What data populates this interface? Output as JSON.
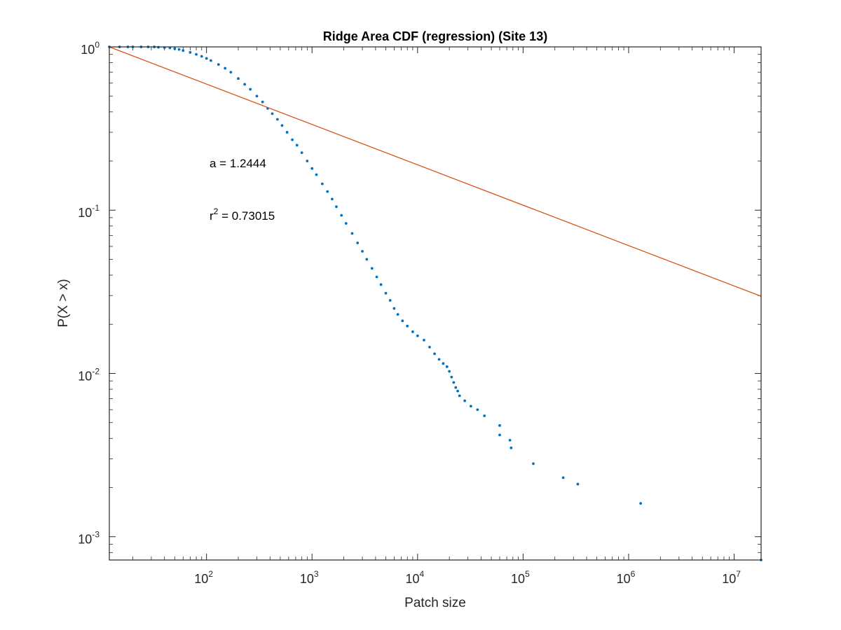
{
  "chart_data": {
    "type": "scatter",
    "title": "Ridge Area CDF (regression) (Site 13)",
    "xlabel": "Patch size",
    "ylabel": "P(X > x)",
    "x_scale": "log",
    "y_scale": "log",
    "xlim": [
      12,
      18000000
    ],
    "ylim": [
      0.00072,
      1
    ],
    "grid": false,
    "x_ticks": [
      {
        "base": "10",
        "exp": "2",
        "value": 100
      },
      {
        "base": "10",
        "exp": "3",
        "value": 1000
      },
      {
        "base": "10",
        "exp": "4",
        "value": 10000
      },
      {
        "base": "10",
        "exp": "5",
        "value": 100000
      },
      {
        "base": "10",
        "exp": "6",
        "value": 1000000
      },
      {
        "base": "10",
        "exp": "7",
        "value": 10000000
      }
    ],
    "y_ticks": [
      {
        "base": "10",
        "exp": "0",
        "value": 1
      },
      {
        "base": "10",
        "exp": "-1",
        "value": 0.1
      },
      {
        "base": "10",
        "exp": "-2",
        "value": 0.01
      },
      {
        "base": "10",
        "exp": "-3",
        "value": 0.001
      }
    ],
    "series": [
      {
        "marker": "dot",
        "color": "#0072BD",
        "x": [
          12,
          15,
          18,
          20,
          24,
          28,
          32,
          35,
          40,
          45,
          50,
          55,
          60,
          70,
          80,
          90,
          100,
          110,
          130,
          150,
          170,
          200,
          230,
          260,
          300,
          340,
          380,
          420,
          470,
          520,
          580,
          650,
          720,
          800,
          900,
          1000,
          1100,
          1250,
          1400,
          1550,
          1700,
          1900,
          2100,
          2400,
          2700,
          3000,
          3300,
          3700,
          4100,
          4500,
          5000,
          5500,
          6000,
          6500,
          7200,
          8000,
          9000,
          10000,
          11500,
          13000,
          14500,
          16000,
          17500,
          19000,
          20000,
          21000,
          22000,
          23000,
          24000,
          25000,
          28000,
          32000,
          37000,
          43000,
          60000,
          60000,
          75000,
          77000,
          125000,
          240000,
          330000,
          1300000,
          18000000
        ],
        "y": [
          1.0,
          1.0,
          1.0,
          1.0,
          1.0,
          1.0,
          1.0,
          0.995,
          0.99,
          0.985,
          0.975,
          0.965,
          0.95,
          0.925,
          0.9,
          0.875,
          0.85,
          0.825,
          0.78,
          0.74,
          0.7,
          0.64,
          0.59,
          0.55,
          0.5,
          0.46,
          0.42,
          0.39,
          0.36,
          0.33,
          0.3,
          0.27,
          0.25,
          0.225,
          0.2,
          0.18,
          0.165,
          0.145,
          0.13,
          0.117,
          0.105,
          0.093,
          0.083,
          0.072,
          0.063,
          0.056,
          0.05,
          0.044,
          0.039,
          0.035,
          0.031,
          0.028,
          0.025,
          0.023,
          0.021,
          0.0195,
          0.018,
          0.017,
          0.016,
          0.0145,
          0.0132,
          0.0122,
          0.0115,
          0.011,
          0.0103,
          0.0095,
          0.0088,
          0.0082,
          0.0078,
          0.0073,
          0.0068,
          0.0063,
          0.006,
          0.0055,
          0.0048,
          0.0042,
          0.0039,
          0.0035,
          0.0028,
          0.0023,
          0.0021,
          0.0016,
          0.00072
        ]
      },
      {
        "type": "line",
        "color": "#D95319",
        "x": [
          12,
          18000000
        ],
        "y": [
          1.0,
          0.0297
        ]
      }
    ],
    "annotations": [
      {
        "text": "a = 1.2444"
      },
      {
        "base": "r",
        "exp": "2",
        "rest": " = 0.73015"
      }
    ]
  }
}
